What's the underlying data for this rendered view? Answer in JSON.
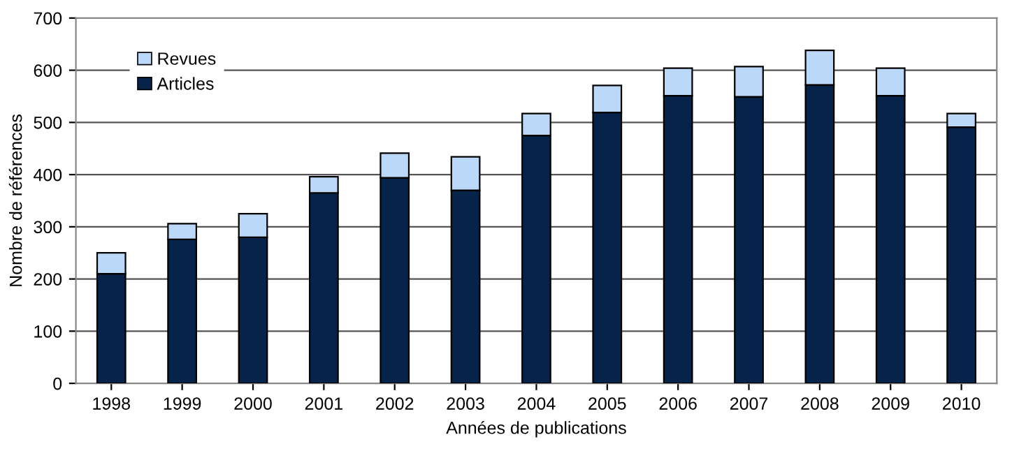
{
  "chart_data": {
    "type": "bar",
    "stacked": true,
    "xlabel": "Années de publications",
    "ylabel": "Nombre de références",
    "categories": [
      "1998",
      "1999",
      "2000",
      "2001",
      "2002",
      "2003",
      "2004",
      "2005",
      "2006",
      "2007",
      "2008",
      "2009",
      "2010"
    ],
    "series": [
      {
        "name": "Articles",
        "color": "#06234a",
        "values": [
          210,
          276,
          280,
          365,
          394,
          370,
          475,
          519,
          551,
          549,
          572,
          551,
          491
        ]
      },
      {
        "name": "Revues",
        "color": "#bcd8f8",
        "values": [
          40,
          30,
          45,
          31,
          47,
          64,
          42,
          52,
          53,
          58,
          66,
          53,
          26
        ]
      }
    ],
    "ylim": [
      0,
      700
    ],
    "yticks": [
      0,
      100,
      200,
      300,
      400,
      500,
      600,
      700
    ],
    "grid": "y",
    "legend": "top left"
  }
}
